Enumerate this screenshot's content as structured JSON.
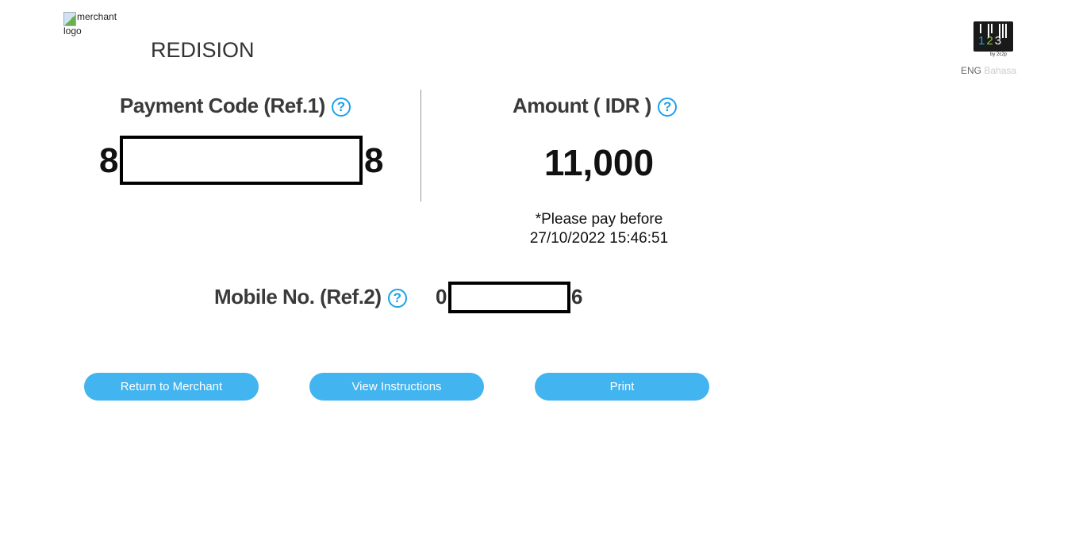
{
  "merchant": {
    "logo_alt": "merchant logo",
    "name": "REDISION"
  },
  "brand": {
    "logo_digits": [
      "1",
      "2",
      "3"
    ],
    "logo_tagline": "by 2c2p",
    "logo_digit_colors": [
      "#1aa3e8",
      "#8cc63f",
      "#ffffff"
    ]
  },
  "language": {
    "active": "ENG",
    "inactive": "Bahasa"
  },
  "payment_code": {
    "label": "Payment Code (Ref.1)",
    "help_icon": "question-circle-icon",
    "first_digit": "8",
    "last_digit": "8"
  },
  "amount": {
    "label": "Amount ( IDR )",
    "help_icon": "question-circle-icon",
    "value": "11,000",
    "note_line1": "*Please pay before",
    "note_line2": "27/10/2022 15:46:51"
  },
  "mobile": {
    "label": "Mobile No. (Ref.2)",
    "help_icon": "question-circle-icon",
    "first_digit": "0",
    "last_digit": "6"
  },
  "buttons": {
    "return": "Return to Merchant",
    "instructions": "View Instructions",
    "print": "Print"
  },
  "colors": {
    "accent": "#42b4f0",
    "help": "#1aa3e8"
  }
}
